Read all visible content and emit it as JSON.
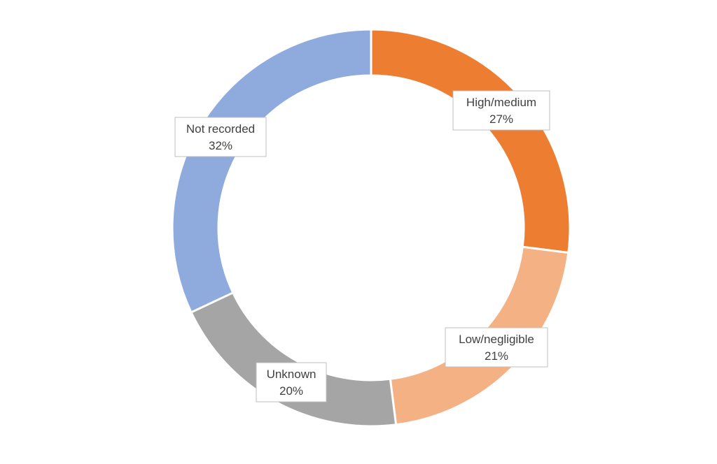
{
  "chart_data": {
    "type": "pie",
    "style": "donut",
    "title": "",
    "legend": "none",
    "categories": [
      "High/medium",
      "Low/negligible",
      "Unknown",
      "Not recorded"
    ],
    "values": [
      27,
      21,
      20,
      32
    ],
    "labels": [
      "27%",
      "21%",
      "20%",
      "32%"
    ],
    "colors": [
      "#ED7D31",
      "#F4B183",
      "#A5A5A5",
      "#8FAADC"
    ]
  }
}
